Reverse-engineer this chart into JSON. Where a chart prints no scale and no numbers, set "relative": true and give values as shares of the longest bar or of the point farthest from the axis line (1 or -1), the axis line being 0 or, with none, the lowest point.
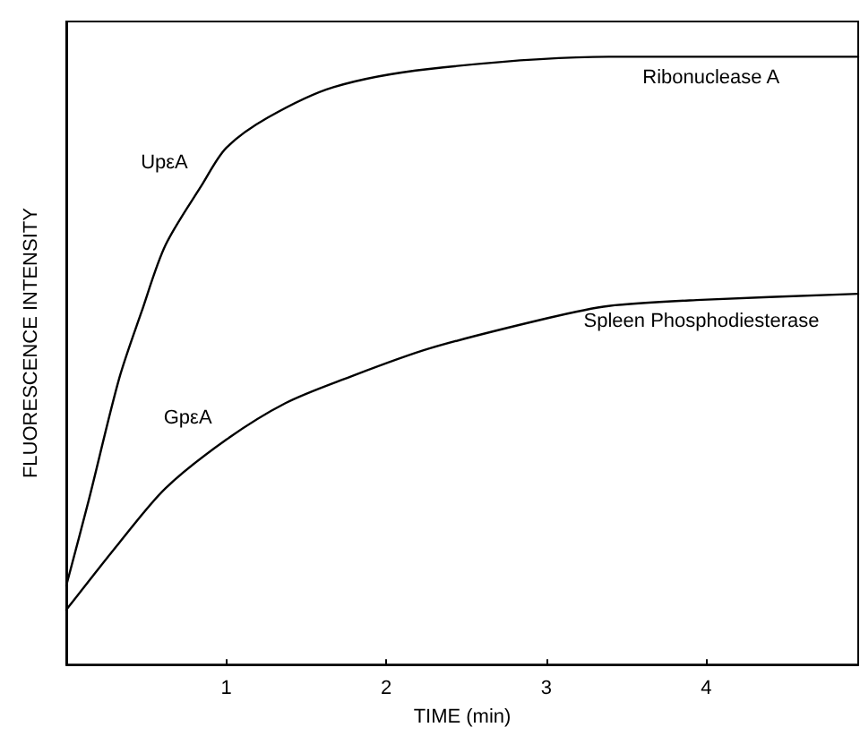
{
  "chart_data": {
    "type": "line",
    "xlabel": "TIME (min)",
    "ylabel": "FLUORESCENCE INTENSITY",
    "relative": true,
    "xlim": [
      0,
      4.95
    ],
    "xticks": [
      1,
      2,
      3,
      4
    ],
    "grid": false,
    "marker": "none",
    "line_style": "solid",
    "series": [
      {
        "color": "#000000",
        "x": [
          0,
          0.14,
          0.33,
          0.47,
          0.62,
          0.85,
          1.0,
          1.26,
          1.67,
          2.27,
          3.39,
          4.03,
          4.95
        ],
        "values": [
          0.13,
          0.27,
          0.47,
          0.58,
          0.69,
          0.79,
          0.85,
          0.9,
          0.95,
          0.98,
          1.0,
          1.0,
          1.0
        ]
      },
      {
        "color": "#000000",
        "x": [
          0,
          0.33,
          0.62,
          1.0,
          1.37,
          1.74,
          2.27,
          3.01,
          3.39,
          3.97,
          4.95
        ],
        "values": [
          0.09,
          0.2,
          0.29,
          0.37,
          0.43,
          0.47,
          0.52,
          0.57,
          0.59,
          0.6,
          0.61
        ]
      }
    ],
    "annotations": [
      {
        "text": "UpεA",
        "x": 0.85,
        "y": 0.79
      },
      {
        "text": "Ribonuclease A",
        "x": 4.03,
        "y": 1.0
      },
      {
        "text": "GpεA",
        "x": 1.0,
        "y": 0.37
      },
      {
        "text": "Spleen Phosphodiesterase",
        "x": 3.97,
        "y": 0.6
      }
    ]
  }
}
